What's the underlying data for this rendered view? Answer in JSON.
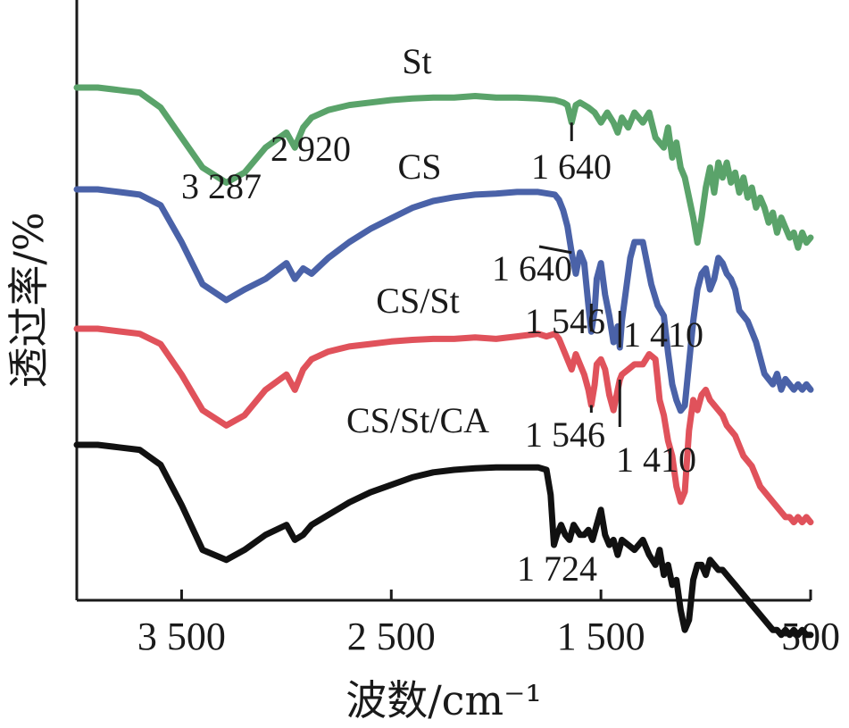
{
  "chart_data": {
    "type": "line",
    "xlabel": "波数/cm⁻¹",
    "ylabel": "透过率/%",
    "xlim": [
      4000,
      500
    ],
    "x_reversed": true,
    "x_ticks": [
      3500,
      2500,
      1500,
      500
    ],
    "x_tick_labels": [
      "3 500",
      "2 500",
      "1 500",
      "500"
    ],
    "y_ticks_shown": false,
    "grid": false,
    "legend": "none (series labelled directly on curves)",
    "series": [
      {
        "name": "St",
        "color": "#5aa36a",
        "x": [
          4000,
          3900,
          3800,
          3700,
          3600,
          3500,
          3400,
          3287,
          3200,
          3100,
          3000,
          2960,
          2920,
          2880,
          2800,
          2700,
          2600,
          2500,
          2400,
          2300,
          2200,
          2100,
          2000,
          1900,
          1800,
          1720,
          1680,
          1660,
          1640,
          1620,
          1600,
          1560,
          1530,
          1500,
          1470,
          1440,
          1420,
          1400,
          1370,
          1340,
          1300,
          1270,
          1240,
          1200,
          1180,
          1160,
          1140,
          1120,
          1100,
          1080,
          1060,
          1040,
          1020,
          1000,
          980,
          960,
          940,
          920,
          900,
          880,
          860,
          840,
          820,
          800,
          780,
          760,
          740,
          720,
          700,
          680,
          660,
          640,
          620,
          600,
          580,
          560,
          540,
          520,
          500
        ],
        "y": [
          62,
          62,
          61.5,
          61,
          58,
          52,
          46,
          43,
          45,
          50,
          53,
          50,
          54,
          56,
          57.5,
          58.5,
          59,
          59.5,
          59.8,
          60,
          60,
          60.3,
          60,
          60,
          59.8,
          59.5,
          59,
          58.5,
          55,
          58.5,
          59,
          58,
          57,
          55,
          57,
          55,
          53,
          56,
          54,
          57,
          55,
          57,
          52,
          50,
          54,
          48,
          51,
          46,
          44,
          40,
          36,
          31,
          36,
          42,
          46,
          41,
          47,
          44,
          47,
          43,
          45,
          41,
          44,
          40,
          42,
          38,
          40,
          38,
          35,
          37,
          33,
          36,
          34,
          32,
          33,
          30,
          33,
          31,
          32
        ]
      },
      {
        "name": "CS",
        "color": "#4a62a8",
        "x": [
          4000,
          3900,
          3800,
          3700,
          3600,
          3500,
          3400,
          3287,
          3200,
          3100,
          3000,
          2960,
          2920,
          2880,
          2800,
          2700,
          2600,
          2500,
          2400,
          2300,
          2200,
          2100,
          2000,
          1900,
          1800,
          1720,
          1700,
          1680,
          1660,
          1640,
          1620,
          1600,
          1580,
          1560,
          1546,
          1530,
          1520,
          1500,
          1480,
          1460,
          1440,
          1420,
          1410,
          1400,
          1380,
          1360,
          1340,
          1300,
          1260,
          1230,
          1200,
          1180,
          1160,
          1140,
          1120,
          1100,
          1080,
          1060,
          1040,
          1020,
          1000,
          980,
          960,
          940,
          920,
          900,
          880,
          860,
          840,
          820,
          800,
          780,
          760,
          740,
          720,
          700,
          680,
          660,
          640,
          620,
          600,
          580,
          560,
          540,
          520,
          500
        ],
        "y": [
          62,
          62,
          61.5,
          61,
          59,
          52,
          44,
          41,
          43,
          45,
          48,
          45,
          47,
          46,
          49,
          52,
          54.5,
          56.5,
          58.5,
          59.8,
          60.5,
          61,
          61.2,
          61.5,
          61.5,
          61,
          60,
          58,
          55,
          50,
          46,
          50,
          48,
          40,
          35,
          39,
          45,
          48,
          42,
          38,
          33,
          36,
          32,
          37,
          43,
          49,
          52,
          52,
          44,
          40,
          38,
          31,
          25,
          22,
          20,
          21,
          29,
          37,
          43,
          46,
          47,
          43,
          45,
          49,
          48,
          46,
          45,
          43,
          39,
          38,
          37,
          35,
          33,
          30,
          27,
          26,
          25,
          27,
          24,
          26,
          25,
          24,
          25,
          24,
          25,
          24
        ]
      },
      {
        "name": "CS/St",
        "color": "#e0525b",
        "x": [
          4000,
          3900,
          3800,
          3700,
          3600,
          3500,
          3400,
          3287,
          3200,
          3100,
          3000,
          2960,
          2920,
          2880,
          2800,
          2700,
          2600,
          2500,
          2400,
          2300,
          2200,
          2100,
          2000,
          1900,
          1800,
          1760,
          1720,
          1700,
          1680,
          1660,
          1640,
          1620,
          1600,
          1580,
          1560,
          1546,
          1530,
          1520,
          1500,
          1480,
          1460,
          1440,
          1420,
          1410,
          1400,
          1370,
          1340,
          1300,
          1270,
          1240,
          1230,
          1220,
          1200,
          1180,
          1160,
          1140,
          1120,
          1100,
          1080,
          1060,
          1040,
          1020,
          1000,
          980,
          960,
          940,
          920,
          900,
          880,
          860,
          840,
          820,
          800,
          780,
          760,
          740,
          720,
          700,
          680,
          660,
          640,
          620,
          600,
          580,
          560,
          540,
          520,
          500
        ],
        "y": [
          62,
          62,
          61.5,
          61,
          59,
          53,
          46,
          43,
          45,
          50,
          53,
          50,
          54,
          56,
          57.5,
          58.5,
          59,
          59.5,
          59.8,
          60,
          60,
          60.3,
          60,
          60.5,
          61,
          60.5,
          61,
          60,
          58,
          56,
          54,
          57,
          55,
          53,
          50,
          47,
          51,
          55,
          56,
          54,
          49,
          46,
          50,
          52,
          53,
          54,
          55,
          55,
          57,
          56,
          52,
          48,
          45,
          40,
          37,
          31,
          28,
          30,
          42,
          48,
          46,
          49,
          50,
          48,
          47,
          46,
          45,
          43,
          42,
          41,
          39,
          37,
          36,
          35,
          33,
          31,
          30,
          29,
          28,
          27,
          26,
          25,
          25,
          24,
          25,
          24,
          25,
          24
        ]
      },
      {
        "name": "CS/St/CA",
        "color": "#111111",
        "x": [
          4000,
          3900,
          3800,
          3700,
          3600,
          3500,
          3400,
          3287,
          3200,
          3100,
          3000,
          2960,
          2920,
          2880,
          2800,
          2700,
          2600,
          2500,
          2400,
          2300,
          2200,
          2100,
          2000,
          1900,
          1800,
          1760,
          1740,
          1724,
          1710,
          1690,
          1670,
          1650,
          1630,
          1600,
          1580,
          1560,
          1540,
          1520,
          1500,
          1480,
          1460,
          1440,
          1420,
          1400,
          1370,
          1340,
          1300,
          1270,
          1240,
          1220,
          1200,
          1180,
          1160,
          1140,
          1120,
          1100,
          1080,
          1060,
          1040,
          1020,
          1000,
          980,
          960,
          940,
          920,
          900,
          880,
          860,
          840,
          820,
          800,
          780,
          760,
          740,
          720,
          700,
          680,
          660,
          640,
          620,
          600,
          580,
          560,
          540,
          520,
          500
        ],
        "y": [
          62,
          62,
          61.5,
          61,
          58,
          50,
          41,
          39,
          41,
          44,
          46,
          43,
          44,
          46,
          48,
          50.5,
          52.5,
          54,
          55.5,
          56.5,
          57,
          57.3,
          57.5,
          57.5,
          57.5,
          57,
          52,
          42,
          44,
          46,
          44,
          43,
          46,
          44,
          44,
          45,
          43,
          46,
          49,
          44,
          42,
          43,
          40,
          43,
          42,
          41,
          43,
          40,
          38,
          41,
          36,
          38,
          34,
          35,
          29,
          25,
          27,
          35,
          38,
          38,
          36,
          39,
          38,
          37,
          37,
          36,
          35,
          34,
          33,
          32,
          31,
          30,
          29,
          28,
          27,
          26,
          25,
          25,
          24,
          25,
          24,
          25,
          24,
          25,
          24,
          24
        ]
      }
    ],
    "annotations": [
      {
        "text": "St",
        "series": "St"
      },
      {
        "text": "CS",
        "series": "CS"
      },
      {
        "text": "CS/St",
        "series": "CS/St"
      },
      {
        "text": "CS/St/CA",
        "series": "CS/St/CA"
      },
      {
        "text": "2 920",
        "series": "St",
        "x": 2920
      },
      {
        "text": "3 287",
        "series": "St",
        "x": 3287
      },
      {
        "text": "1 640",
        "series": "St",
        "x": 1640
      },
      {
        "text": "1 640",
        "series": "CS",
        "x": 1640
      },
      {
        "text": "1 546",
        "series": "CS",
        "x": 1546
      },
      {
        "text": "1 410",
        "series": "CS",
        "x": 1410
      },
      {
        "text": "1 546",
        "series": "CS/St",
        "x": 1546
      },
      {
        "text": "1 410",
        "series": "CS/St",
        "x": 1410
      },
      {
        "text": "1 724",
        "series": "CS/St/CA",
        "x": 1724
      }
    ]
  }
}
